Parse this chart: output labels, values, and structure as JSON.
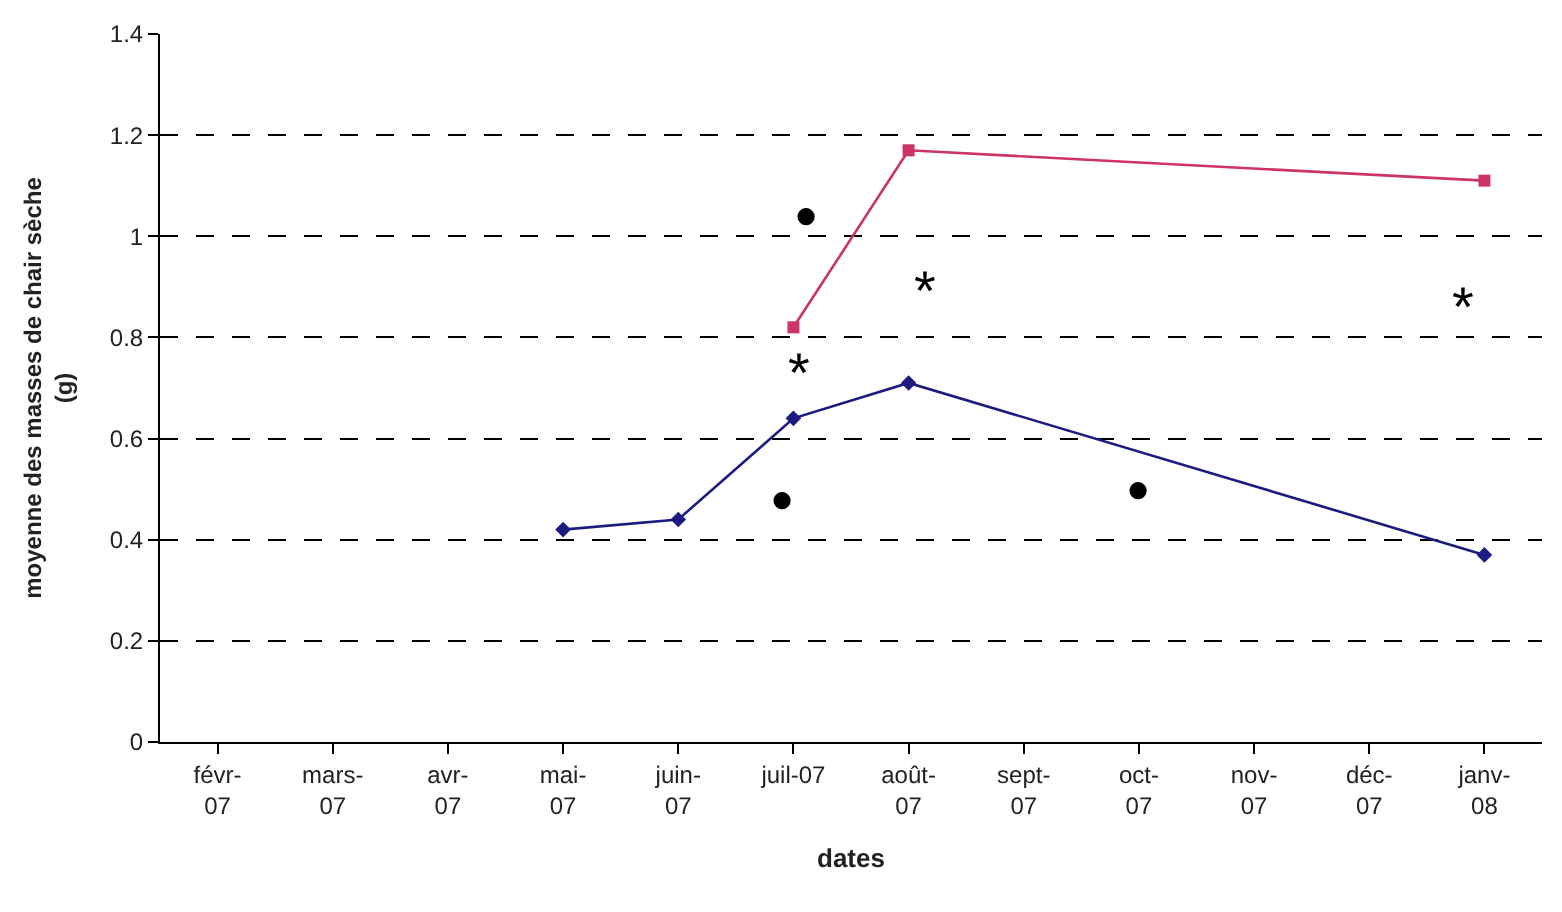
{
  "chart_data": {
    "type": "line",
    "xlabel": "dates",
    "ylabel": "moyenne des masses de chair sèche\n(g)",
    "categories": [
      "févr-\n07",
      "mars-\n07",
      "avr-\n07",
      "mai-\n07",
      "juin-\n07",
      "juil-07",
      "août-\n07",
      "sept-\n07",
      "oct-\n07",
      "nov-\n07",
      "déc-\n07",
      "janv-\n08"
    ],
    "series": [
      {
        "color": "#1c1c80",
        "marker": "diamond",
        "values": [
          null,
          null,
          null,
          0.42,
          0.44,
          0.64,
          0.71,
          null,
          null,
          null,
          null,
          0.37
        ]
      },
      {
        "color": "#cc3366",
        "marker": "square",
        "values": [
          null,
          null,
          null,
          null,
          null,
          0.82,
          1.17,
          null,
          null,
          null,
          null,
          1.11
        ]
      }
    ],
    "ylim": [
      0,
      1.4
    ],
    "yticks": [
      0,
      0.2,
      0.4,
      0.6,
      0.8,
      1,
      1.2,
      1.4
    ],
    "grid": "y",
    "line_style": "solid",
    "legend": false,
    "annotations": [
      "●",
      "●",
      "●",
      "*",
      "*",
      "*"
    ]
  }
}
